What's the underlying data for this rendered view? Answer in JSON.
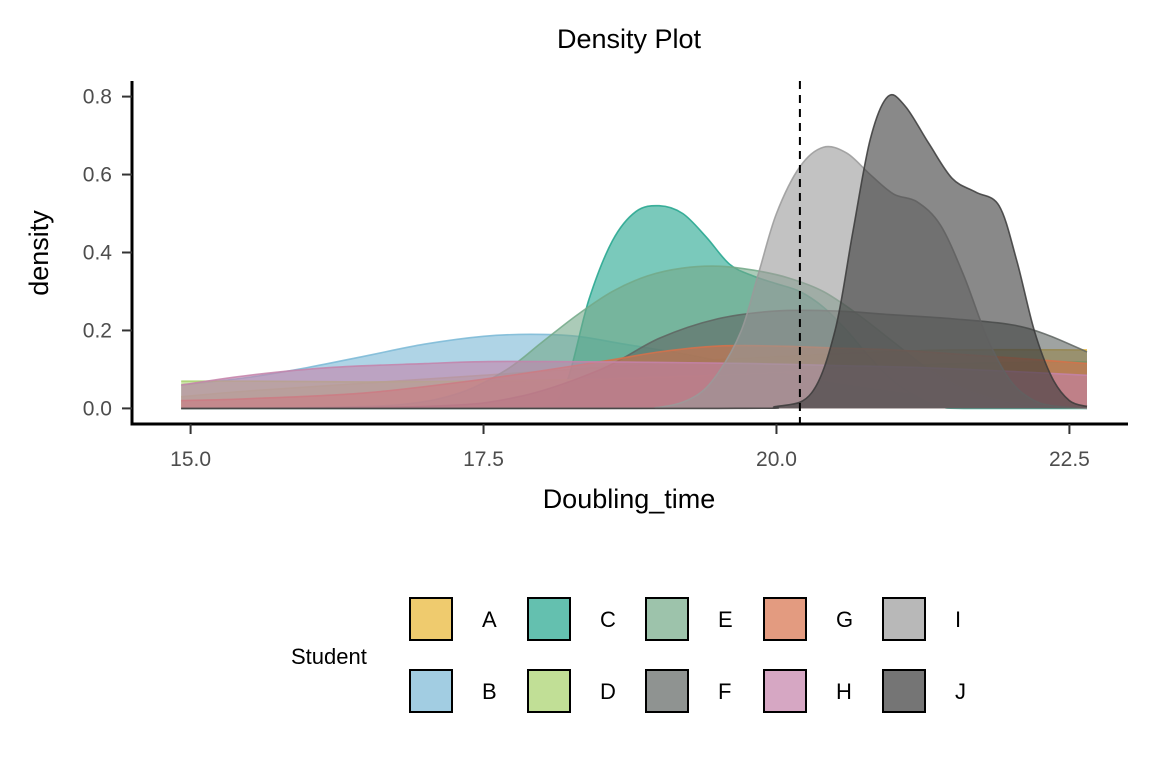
{
  "chart_data": {
    "type": "area",
    "subtype": "density",
    "title": "Density Plot",
    "xlabel": "Doubling_time",
    "ylabel": "density",
    "xlim": [
      14.5,
      23.0
    ],
    "ylim": [
      -0.04,
      0.84
    ],
    "x_ticks": [
      15.0,
      17.5,
      20.0,
      22.5
    ],
    "x_tick_labels": [
      "15.0",
      "17.5",
      "20.0",
      "22.5"
    ],
    "y_ticks": [
      0.0,
      0.2,
      0.4,
      0.6,
      0.8
    ],
    "y_tick_labels": [
      "0.0",
      "0.2",
      "0.4",
      "0.6",
      "0.8"
    ],
    "grid": false,
    "vline": {
      "x": 20.2,
      "style": "dashed"
    },
    "legend": {
      "title": "Student",
      "position": "bottom"
    },
    "series": [
      {
        "name": "A",
        "color": "#E8B530",
        "points": [
          [
            14.92,
            0.03
          ],
          [
            15.5,
            0.045
          ],
          [
            16.5,
            0.065
          ],
          [
            17.5,
            0.085
          ],
          [
            18.5,
            0.105
          ],
          [
            19.5,
            0.125
          ],
          [
            20.5,
            0.14
          ],
          [
            21.5,
            0.15
          ],
          [
            22.65,
            0.15
          ]
        ]
      },
      {
        "name": "B",
        "color": "#7AB8D6",
        "points": [
          [
            14.92,
            0.06
          ],
          [
            15.5,
            0.08
          ],
          [
            16.0,
            0.105
          ],
          [
            16.5,
            0.135
          ],
          [
            17.0,
            0.165
          ],
          [
            17.5,
            0.185
          ],
          [
            17.9,
            0.19
          ],
          [
            18.3,
            0.185
          ],
          [
            18.7,
            0.165
          ],
          [
            19.2,
            0.14
          ],
          [
            19.7,
            0.11
          ],
          [
            20.2,
            0.08
          ],
          [
            20.7,
            0.055
          ],
          [
            21.2,
            0.035
          ],
          [
            21.7,
            0.02
          ],
          [
            22.2,
            0.01
          ],
          [
            22.65,
            0.005
          ]
        ]
      },
      {
        "name": "C",
        "color": "#22A58D",
        "points": [
          [
            14.92,
            0.0
          ],
          [
            17.5,
            0.0
          ],
          [
            18.0,
            0.002
          ],
          [
            18.2,
            0.06
          ],
          [
            18.4,
            0.28
          ],
          [
            18.6,
            0.43
          ],
          [
            18.8,
            0.505
          ],
          [
            19.0,
            0.52
          ],
          [
            19.2,
            0.5
          ],
          [
            19.4,
            0.44
          ],
          [
            19.6,
            0.37
          ],
          [
            19.8,
            0.34
          ],
          [
            20.0,
            0.32
          ],
          [
            20.2,
            0.3
          ],
          [
            20.4,
            0.26
          ],
          [
            20.6,
            0.2
          ],
          [
            20.8,
            0.13
          ],
          [
            21.0,
            0.07
          ],
          [
            21.2,
            0.03
          ],
          [
            21.4,
            0.005
          ],
          [
            21.6,
            0.0
          ],
          [
            22.65,
            0.0
          ]
        ]
      },
      {
        "name": "D",
        "color": "#A6D16A",
        "points": [
          [
            14.92,
            0.07
          ],
          [
            15.5,
            0.07
          ],
          [
            16.5,
            0.068
          ],
          [
            17.5,
            0.07
          ],
          [
            18.5,
            0.075
          ],
          [
            19.5,
            0.085
          ],
          [
            20.5,
            0.1
          ],
          [
            21.5,
            0.115
          ],
          [
            22.65,
            0.12
          ]
        ]
      },
      {
        "name": "E",
        "color": "#73A988",
        "points": [
          [
            14.92,
            0.0
          ],
          [
            16.0,
            0.002
          ],
          [
            16.8,
            0.01
          ],
          [
            17.3,
            0.04
          ],
          [
            17.7,
            0.1
          ],
          [
            18.0,
            0.17
          ],
          [
            18.3,
            0.24
          ],
          [
            18.6,
            0.3
          ],
          [
            18.9,
            0.34
          ],
          [
            19.2,
            0.36
          ],
          [
            19.5,
            0.365
          ],
          [
            19.8,
            0.355
          ],
          [
            20.1,
            0.335
          ],
          [
            20.4,
            0.3
          ],
          [
            20.7,
            0.24
          ],
          [
            21.0,
            0.17
          ],
          [
            21.3,
            0.1
          ],
          [
            21.6,
            0.05
          ],
          [
            21.9,
            0.02
          ],
          [
            22.2,
            0.005
          ],
          [
            22.65,
            0.0
          ]
        ]
      },
      {
        "name": "F",
        "color": "#5F6562",
        "points": [
          [
            14.92,
            0.0
          ],
          [
            17.0,
            0.005
          ],
          [
            17.8,
            0.03
          ],
          [
            18.5,
            0.1
          ],
          [
            19.0,
            0.18
          ],
          [
            19.5,
            0.23
          ],
          [
            20.0,
            0.25
          ],
          [
            20.5,
            0.25
          ],
          [
            21.0,
            0.24
          ],
          [
            21.5,
            0.23
          ],
          [
            22.0,
            0.215
          ],
          [
            22.3,
            0.19
          ],
          [
            22.65,
            0.145
          ]
        ]
      },
      {
        "name": "G",
        "color": "#D7714A",
        "points": [
          [
            14.92,
            0.02
          ],
          [
            15.5,
            0.025
          ],
          [
            16.5,
            0.04
          ],
          [
            17.5,
            0.075
          ],
          [
            18.5,
            0.12
          ],
          [
            19.0,
            0.145
          ],
          [
            19.5,
            0.16
          ],
          [
            20.0,
            0.16
          ],
          [
            20.5,
            0.155
          ],
          [
            21.0,
            0.15
          ],
          [
            21.5,
            0.14
          ],
          [
            22.0,
            0.13
          ],
          [
            22.65,
            0.115
          ]
        ]
      },
      {
        "name": "H",
        "color": "#C482AA",
        "points": [
          [
            14.92,
            0.06
          ],
          [
            15.5,
            0.085
          ],
          [
            16.2,
            0.105
          ],
          [
            17.0,
            0.115
          ],
          [
            17.5,
            0.12
          ],
          [
            18.2,
            0.12
          ],
          [
            19.0,
            0.118
          ],
          [
            19.8,
            0.115
          ],
          [
            20.5,
            0.11
          ],
          [
            21.2,
            0.105
          ],
          [
            22.0,
            0.095
          ],
          [
            22.65,
            0.085
          ]
        ]
      },
      {
        "name": "I",
        "color": "#9A9A9A",
        "points": [
          [
            14.92,
            0.0
          ],
          [
            18.5,
            0.0
          ],
          [
            19.0,
            0.003
          ],
          [
            19.3,
            0.03
          ],
          [
            19.5,
            0.09
          ],
          [
            19.7,
            0.2
          ],
          [
            19.85,
            0.35
          ],
          [
            20.0,
            0.5
          ],
          [
            20.2,
            0.62
          ],
          [
            20.4,
            0.67
          ],
          [
            20.6,
            0.655
          ],
          [
            20.8,
            0.6
          ],
          [
            21.0,
            0.55
          ],
          [
            21.2,
            0.53
          ],
          [
            21.4,
            0.47
          ],
          [
            21.6,
            0.34
          ],
          [
            21.8,
            0.18
          ],
          [
            22.0,
            0.07
          ],
          [
            22.2,
            0.02
          ],
          [
            22.4,
            0.005
          ],
          [
            22.65,
            0.0
          ]
        ]
      },
      {
        "name": "J",
        "color": "#3A3A3A",
        "points": [
          [
            14.92,
            0.0
          ],
          [
            19.5,
            0.0
          ],
          [
            20.0,
            0.005
          ],
          [
            20.3,
            0.04
          ],
          [
            20.5,
            0.2
          ],
          [
            20.65,
            0.45
          ],
          [
            20.8,
            0.69
          ],
          [
            20.95,
            0.8
          ],
          [
            21.1,
            0.775
          ],
          [
            21.3,
            0.68
          ],
          [
            21.5,
            0.59
          ],
          [
            21.7,
            0.555
          ],
          [
            21.9,
            0.52
          ],
          [
            22.05,
            0.38
          ],
          [
            22.2,
            0.2
          ],
          [
            22.35,
            0.08
          ],
          [
            22.5,
            0.02
          ],
          [
            22.65,
            0.005
          ]
        ]
      }
    ]
  }
}
